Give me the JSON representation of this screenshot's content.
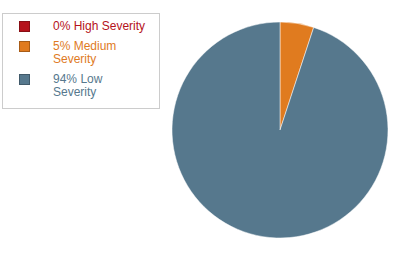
{
  "chart_data": {
    "type": "pie",
    "categories": [
      "High Severity",
      "Medium Severity",
      "Low Severity"
    ],
    "values": [
      0,
      5,
      94
    ],
    "value_labels": [
      "0%",
      "5%",
      "94%"
    ],
    "colors": [
      "#b5121b",
      "#e07b1f",
      "#56788d"
    ],
    "legend": "top-left"
  }
}
